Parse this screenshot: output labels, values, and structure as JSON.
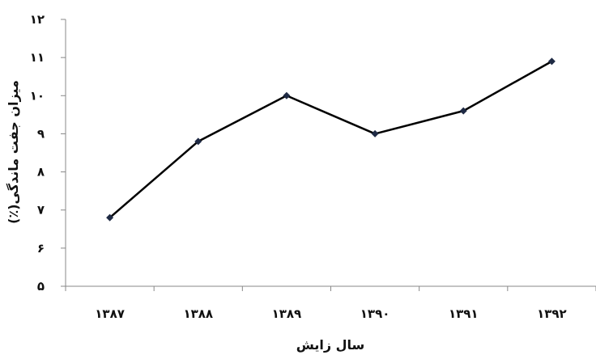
{
  "chart_data": {
    "type": "line",
    "categories": [
      "۱۳۸۷",
      "۱۳۸۸",
      "۱۳۸۹",
      "۱۳۹۰",
      "۱۳۹۱",
      "۱۳۹۲"
    ],
    "series": [
      {
        "values": [
          6.8,
          8.8,
          10.0,
          9.0,
          9.6,
          10.9
        ]
      }
    ],
    "yticks": [
      {
        "value": 5,
        "label": "۵"
      },
      {
        "value": 6,
        "label": "۶"
      },
      {
        "value": 7,
        "label": "۷"
      },
      {
        "value": 8,
        "label": "۸"
      },
      {
        "value": 9,
        "label": "۹"
      },
      {
        "value": 10,
        "label": "۱۰"
      },
      {
        "value": 11,
        "label": "۱۱"
      },
      {
        "value": 12,
        "label": "۱۲"
      }
    ],
    "ylim": [
      5,
      12
    ],
    "xlabel": "سال زایش",
    "ylabel": "میزان جفت ماندگی(٪)",
    "grid": false,
    "legend": "none",
    "line_color": "#000000",
    "marker_color": "#1f2a44"
  }
}
